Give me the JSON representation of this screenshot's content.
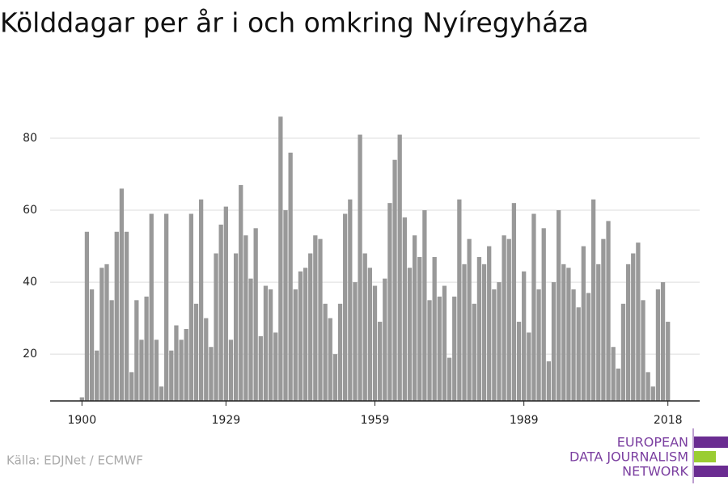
{
  "chart_data": {
    "type": "bar",
    "title": "Kölddagar per år i och omkring Nyíregyháza",
    "source": "Källa: EDJNet / ECMWF",
    "logo": [
      "EUROPEAN",
      "DATA JOURNALISM",
      "NETWORK"
    ],
    "color": "#999999",
    "grid": true,
    "x": [
      1900,
      1901,
      1902,
      1903,
      1904,
      1905,
      1906,
      1907,
      1908,
      1909,
      1910,
      1911,
      1912,
      1913,
      1914,
      1915,
      1916,
      1917,
      1918,
      1919,
      1920,
      1921,
      1922,
      1923,
      1924,
      1925,
      1926,
      1927,
      1928,
      1929,
      1930,
      1931,
      1932,
      1933,
      1934,
      1935,
      1936,
      1937,
      1938,
      1939,
      1940,
      1941,
      1942,
      1943,
      1944,
      1945,
      1946,
      1947,
      1948,
      1949,
      1950,
      1951,
      1952,
      1953,
      1954,
      1955,
      1956,
      1957,
      1958,
      1959,
      1960,
      1961,
      1962,
      1963,
      1964,
      1965,
      1966,
      1967,
      1968,
      1969,
      1970,
      1971,
      1972,
      1973,
      1974,
      1975,
      1976,
      1977,
      1978,
      1979,
      1980,
      1981,
      1982,
      1983,
      1984,
      1985,
      1986,
      1987,
      1988,
      1989,
      1990,
      1991,
      1992,
      1993,
      1994,
      1995,
      1996,
      1997,
      1998,
      1999,
      2000,
      2001,
      2002,
      2003,
      2004,
      2005,
      2006,
      2007,
      2008,
      2009,
      2010,
      2011,
      2012,
      2013,
      2014,
      2015,
      2016,
      2017,
      2018
    ],
    "values": [
      8,
      54,
      38,
      21,
      44,
      45,
      35,
      54,
      66,
      54,
      15,
      35,
      24,
      36,
      59,
      24,
      11,
      59,
      21,
      28,
      24,
      27,
      59,
      34,
      63,
      30,
      22,
      48,
      56,
      61,
      24,
      48,
      67,
      53,
      41,
      55,
      25,
      39,
      38,
      26,
      86,
      60,
      76,
      38,
      43,
      44,
      48,
      53,
      52,
      34,
      30,
      20,
      34,
      59,
      63,
      40,
      81,
      48,
      44,
      39,
      29,
      41,
      62,
      74,
      81,
      58,
      44,
      53,
      47,
      60,
      35,
      47,
      36,
      39,
      19,
      36,
      63,
      45,
      52,
      34,
      47,
      45,
      50,
      38,
      40,
      53,
      52,
      62,
      29,
      43,
      26,
      59,
      38,
      55,
      18,
      40,
      60,
      45,
      44,
      38,
      33,
      50,
      37,
      63,
      45,
      52,
      57,
      22,
      16,
      34,
      45,
      48,
      51,
      35,
      15,
      11,
      38,
      40,
      29
    ],
    "xlim": [
      1893.6,
      2024.4
    ],
    "xticks": [
      1900,
      1929,
      1959,
      1989,
      2018
    ],
    "ylim": [
      7,
      88
    ],
    "yticks": [
      20,
      40,
      60,
      80
    ]
  }
}
